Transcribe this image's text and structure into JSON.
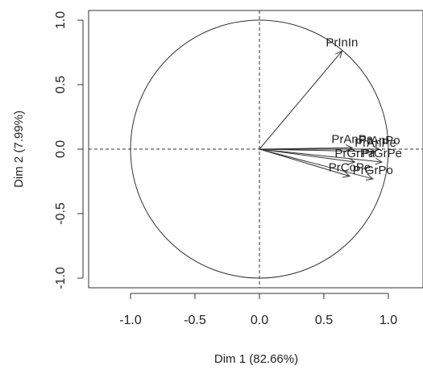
{
  "chart_data": {
    "type": "scatter",
    "subtype": "pca-variable-correlation-circle",
    "xlabel": "Dim 1 (82.66%)",
    "ylabel": "Dim 2 (7.99%)",
    "xlim": [
      -1.3,
      1.25
    ],
    "ylim": [
      -1.08,
      1.08
    ],
    "x_ticks": [
      -1.0,
      -0.5,
      0.0,
      0.5,
      1.0
    ],
    "x_tick_labels": [
      "-1.0",
      "-0.5",
      "0.0",
      "0.5",
      "1.0"
    ],
    "y_ticks": [
      -1.0,
      -0.5,
      0.0,
      0.5,
      1.0
    ],
    "y_tick_labels": [
      "-1.0",
      "-0.5",
      "0.0",
      "0.5",
      "1.0"
    ],
    "unit_circle": true,
    "reference_lines": "dashed at x=0 and y=0",
    "grid": false,
    "legend": "none",
    "variables": [
      {
        "name": "PrInIn",
        "x": 0.64,
        "y": 0.76
      },
      {
        "name": "PrAnPa",
        "x": 0.72,
        "y": 0.01
      },
      {
        "name": "PrAnPo",
        "x": 0.93,
        "y": 0.0
      },
      {
        "name": "PrAnPe",
        "x": 0.9,
        "y": -0.02
      },
      {
        "name": "PrGrPa",
        "x": 0.74,
        "y": -0.1
      },
      {
        "name": "PrGrPe",
        "x": 0.95,
        "y": -0.1
      },
      {
        "name": "PrCoPe",
        "x": 0.7,
        "y": -0.21
      },
      {
        "name": "PrGrPo",
        "x": 0.88,
        "y": -0.23
      }
    ]
  }
}
